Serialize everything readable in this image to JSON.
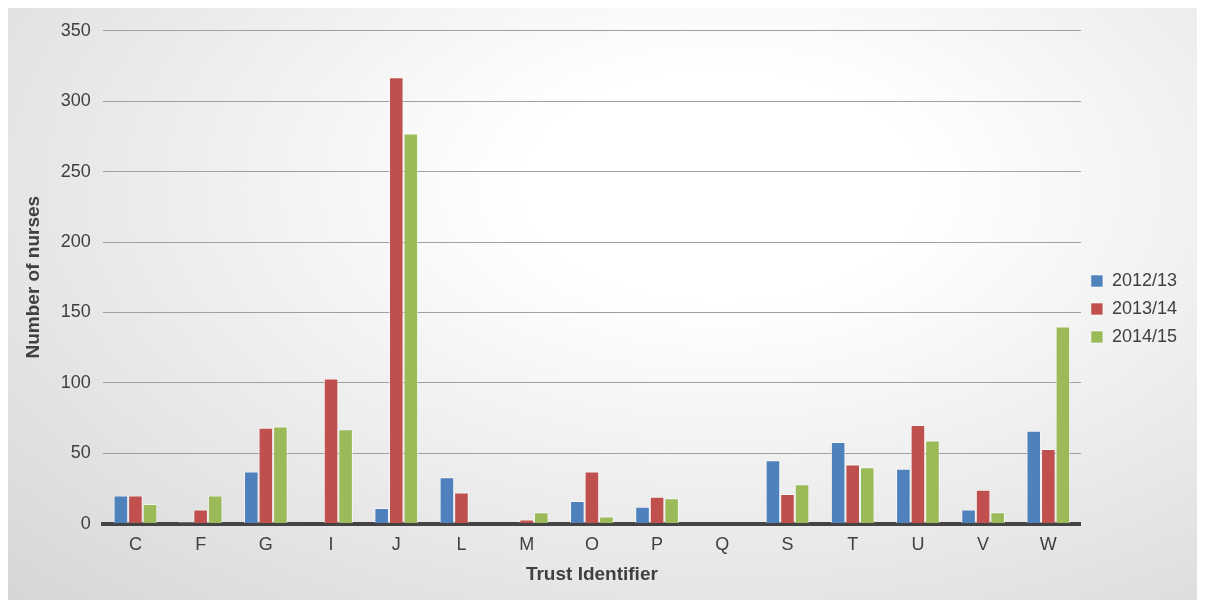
{
  "chart_data": {
    "type": "bar",
    "xlabel": "Trust Identifier",
    "ylabel": "Number of nurses",
    "categories": [
      "C",
      "F",
      "G",
      "I",
      "J",
      "L",
      "M",
      "O",
      "P",
      "Q",
      "S",
      "T",
      "U",
      "V",
      "W"
    ],
    "series": [
      {
        "name": "2012/13",
        "color": "#4f81bd",
        "values": [
          20,
          1,
          37,
          0,
          11,
          33,
          0,
          16,
          12,
          0,
          45,
          58,
          39,
          10,
          66
        ]
      },
      {
        "name": "2013/14",
        "color": "#c0504d",
        "values": [
          20,
          10,
          68,
          103,
          317,
          22,
          3,
          37,
          19,
          0,
          21,
          42,
          70,
          24,
          53
        ]
      },
      {
        "name": "2014/15",
        "color": "#9bbb59",
        "values": [
          14,
          20,
          69,
          67,
          277,
          0,
          8,
          5,
          18,
          0,
          28,
          40,
          59,
          8,
          140
        ]
      }
    ],
    "ylim": [
      0,
      350
    ],
    "yticks": [
      0,
      50,
      100,
      150,
      200,
      250,
      300,
      350
    ],
    "grid": "y",
    "legend": "right"
  }
}
